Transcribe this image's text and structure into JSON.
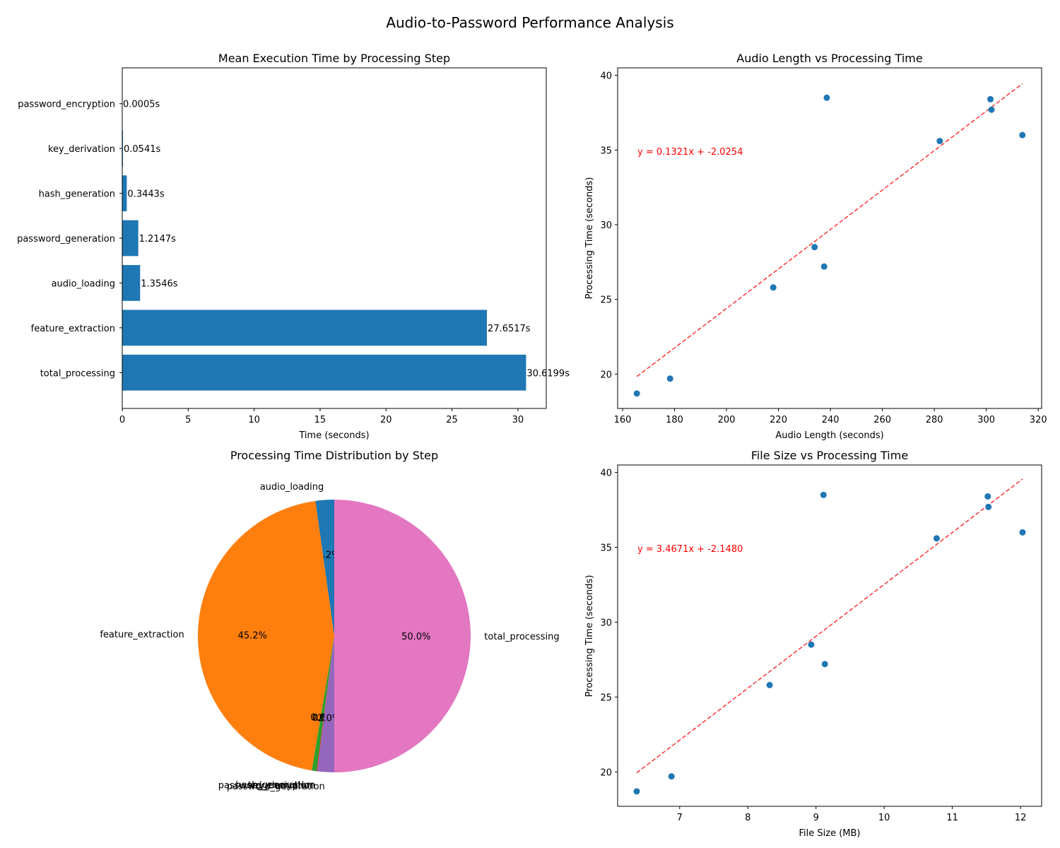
{
  "figure": {
    "title": "Audio-to-Password Performance Analysis"
  },
  "colors": {
    "bar": "#1f77b4",
    "point": "#1f77b4",
    "trend": "#ff0000"
  },
  "chart_data": [
    {
      "type": "bar",
      "orientation": "horizontal",
      "title": "Mean Execution Time by Processing Step",
      "xlabel": "Time (seconds)",
      "ylabel": "",
      "categories": [
        "total_processing",
        "feature_extraction",
        "audio_loading",
        "password_generation",
        "hash_generation",
        "key_derivation",
        "password_encryption"
      ],
      "values": [
        30.6199,
        27.6517,
        1.3546,
        1.2147,
        0.3443,
        0.0541,
        0.0005
      ],
      "data_labels": [
        "30.6199s",
        "27.6517s",
        "1.3546s",
        "1.2147s",
        "0.3443s",
        "0.0541s",
        "0.0005s"
      ],
      "xticks": [
        "0",
        "5",
        "10",
        "15",
        "20",
        "25",
        "30"
      ],
      "xlim": [
        0,
        32.15
      ]
    },
    {
      "type": "scatter",
      "title": "Audio Length vs Processing Time",
      "xlabel": "Audio Length (seconds)",
      "ylabel": "Processing Time (seconds)",
      "x": [
        165.5,
        178.3,
        218.0,
        233.9,
        237.6,
        238.6,
        282.1,
        301.6,
        302.0,
        313.9
      ],
      "y": [
        18.7,
        19.7,
        25.8,
        28.5,
        27.2,
        38.5,
        35.6,
        38.4,
        37.7,
        36.0
      ],
      "xlim": [
        158.1,
        321.3
      ],
      "ylim": [
        17.7,
        40.5
      ],
      "xticks": [
        "160",
        "180",
        "200",
        "220",
        "240",
        "260",
        "280",
        "300",
        "320"
      ],
      "yticks": [
        "20",
        "25",
        "30",
        "35",
        "40"
      ],
      "trend": {
        "slope": 0.1321,
        "intercept": -2.0254,
        "label": "y = 0.1321x + -2.0254"
      }
    },
    {
      "type": "pie",
      "title": "Processing Time Distribution by Step",
      "labels": [
        "audio_loading",
        "feature_extraction",
        "hash_generation",
        "key_derivation",
        "password_encryption",
        "password_generation",
        "total_processing"
      ],
      "values": [
        1.3546,
        27.6517,
        0.3443,
        0.0541,
        0.0005,
        1.2147,
        30.6199
      ],
      "pct_labels": [
        "2.2%",
        "45.2%",
        "0.6%",
        "0.1%",
        "0.0%",
        "2.0%",
        "50.0%"
      ],
      "colors": [
        "#1f77b4",
        "#ff7f0e",
        "#2ca02c",
        "#d62728",
        "#9467bd",
        "#9467bd",
        "#e377c2"
      ]
    },
    {
      "type": "scatter",
      "title": "File Size vs Processing Time",
      "xlabel": "File Size (MB)",
      "ylabel": "Processing Time (seconds)",
      "x": [
        6.37,
        6.88,
        8.32,
        8.93,
        9.13,
        9.11,
        10.77,
        11.52,
        11.53,
        12.03
      ],
      "y": [
        18.7,
        19.7,
        25.8,
        28.5,
        27.2,
        38.5,
        35.6,
        38.4,
        37.7,
        36.0
      ],
      "xlim": [
        6.09,
        12.31
      ],
      "ylim": [
        17.7,
        40.5
      ],
      "xticks": [
        "7",
        "8",
        "9",
        "10",
        "11",
        "12"
      ],
      "yticks": [
        "20",
        "25",
        "30",
        "35",
        "40"
      ],
      "trend": {
        "slope": 3.4671,
        "intercept": -2.148,
        "label": "y = 3.4671x + -2.1480"
      }
    }
  ]
}
